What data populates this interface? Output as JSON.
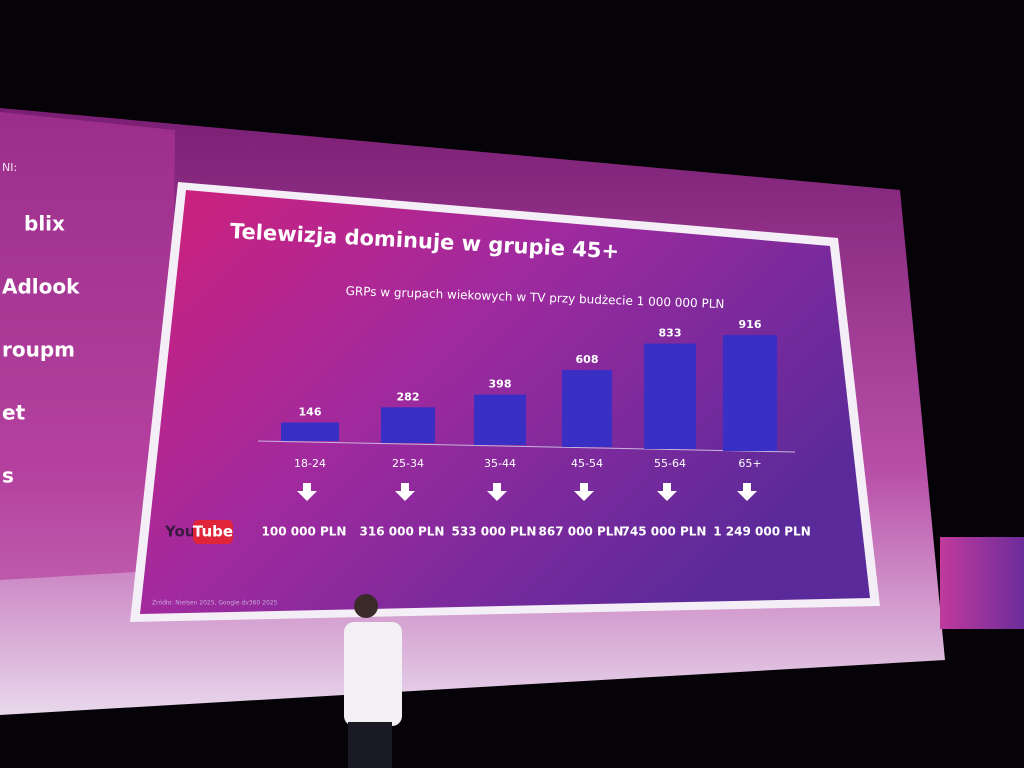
{
  "sponsors": {
    "heading": "NI:",
    "logos": [
      "blix",
      "Adlook",
      "roupm",
      "et",
      "s"
    ]
  },
  "chart_data": {
    "type": "bar",
    "title": "Telewizja dominuje w grupie 45+",
    "subtitle": "GRPs w grupach wiekowych w TV przy budżecie 1 000 000 PLN",
    "categories": [
      "18-24",
      "25-34",
      "35-44",
      "45-54",
      "55-64",
      "65+"
    ],
    "values": [
      146,
      282,
      398,
      608,
      833,
      916
    ],
    "color": "#3a2fc4"
  },
  "youtube": {
    "logo": [
      "You",
      "Tube"
    ],
    "budgets": [
      "100 000 PLN",
      "316 000 PLN",
      "533 000 PLN",
      "867 000 PLN",
      "745 000 PLN",
      "1 249 000 PLN"
    ]
  },
  "source": "Źródło: Nielsen 2025, Google dv360 2025"
}
